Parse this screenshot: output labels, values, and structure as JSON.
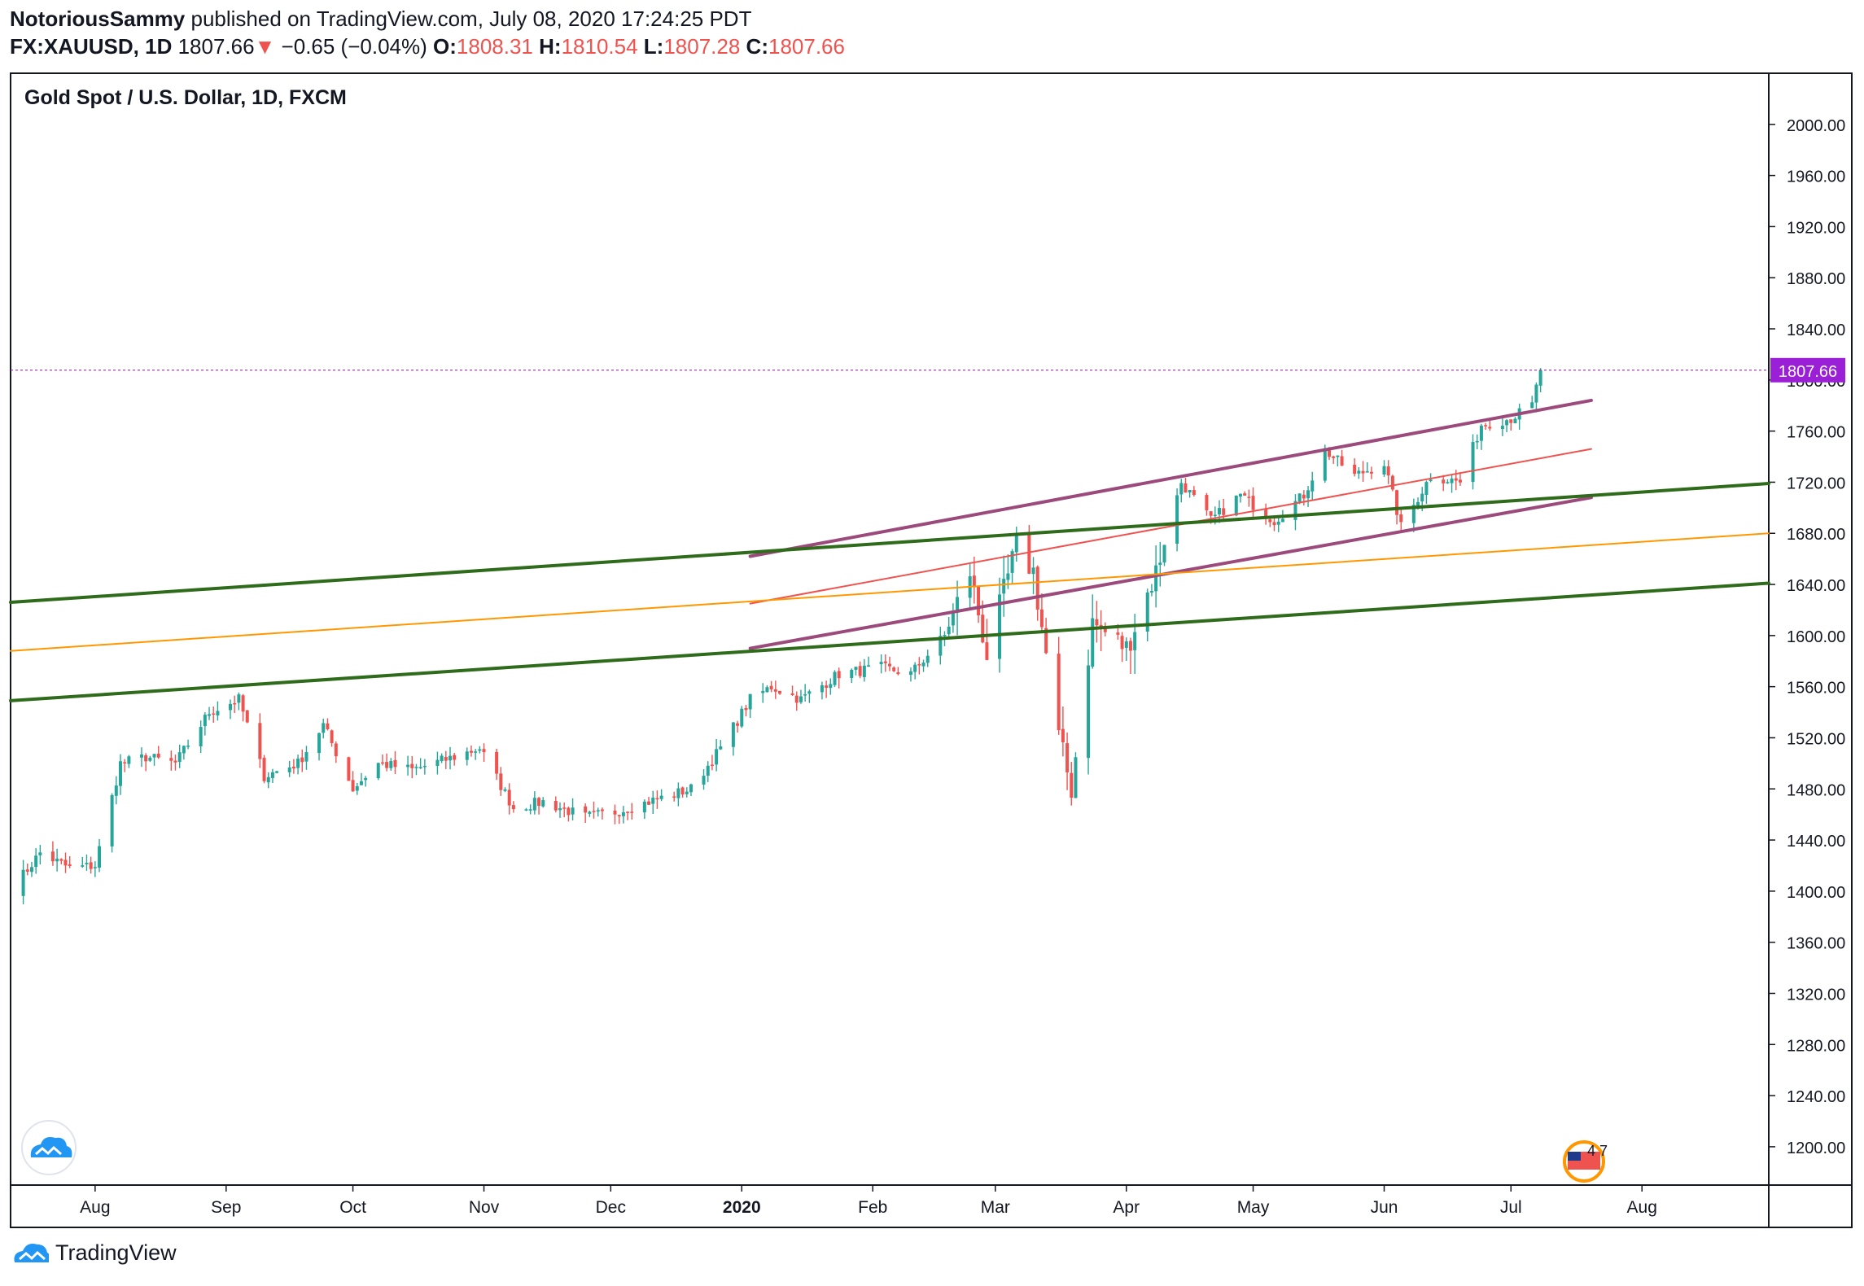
{
  "header": {
    "author": "NotoriousSammy",
    "published": "published on TradingView.com, July 08, 2020 17:24:25 PDT",
    "symbol": "FX:XAUUSD, 1D",
    "last": "1807.66",
    "change_arrow": "▼",
    "change": "−0.65 (−0.04%)",
    "o_label": "O:",
    "o": "1808.31",
    "h_label": "H:",
    "h": "1810.54",
    "l_label": "L:",
    "l": "1807.28",
    "c_label": "C:",
    "c": "1807.66"
  },
  "footer": {
    "brand": "TradingView",
    "logo_icon": "tradingview-logo-icon"
  },
  "colors": {
    "up": "#26a69a",
    "down": "#ef5350",
    "channel": "#9c4a7c",
    "green": "#2e6b1a",
    "orange": "#ff9800",
    "mid": "#ef5350",
    "price_line": "#9c27b0",
    "price_tag": "#9c1fd8"
  },
  "chart_data": {
    "type": "candlestick",
    "title": "Gold Spot / U.S. Dollar, 1D, FXCM",
    "ylim": [
      1170,
      2040
    ],
    "y_ticks": [
      1200,
      1240,
      1280,
      1320,
      1360,
      1400,
      1440,
      1480,
      1520,
      1560,
      1600,
      1640,
      1680,
      1720,
      1760,
      1800,
      1840,
      1880,
      1920,
      1960,
      2000
    ],
    "y_tick_labels": [
      "1200.00",
      "1240.00",
      "1280.00",
      "1320.00",
      "1360.00",
      "1400.00",
      "1440.00",
      "1480.00",
      "1520.00",
      "1560.00",
      "1600.00",
      "1640.00",
      "1680.00",
      "1720.00",
      "1760.00",
      "1800.00",
      "1840.00",
      "1880.00",
      "1920.00",
      "1960.00",
      "2000.00"
    ],
    "x_range": [
      "2019-07-12",
      "2020-08-31"
    ],
    "x_ticks": [
      {
        "date": "2019-08-01",
        "label": "Aug"
      },
      {
        "date": "2019-09-01",
        "label": "Sep"
      },
      {
        "date": "2019-10-01",
        "label": "Oct"
      },
      {
        "date": "2019-11-01",
        "label": "Nov"
      },
      {
        "date": "2019-12-01",
        "label": "Dec"
      },
      {
        "date": "2020-01-01",
        "label": "2020"
      },
      {
        "date": "2020-02-01",
        "label": "Feb"
      },
      {
        "date": "2020-03-01",
        "label": "Mar"
      },
      {
        "date": "2020-04-01",
        "label": "Apr"
      },
      {
        "date": "2020-05-01",
        "label": "May"
      },
      {
        "date": "2020-06-01",
        "label": "Jun"
      },
      {
        "date": "2020-07-01",
        "label": "Jul"
      },
      {
        "date": "2020-08-01",
        "label": "Aug"
      }
    ],
    "last_price": 1807.66,
    "last_price_label": "1807.66",
    "close_keypoints": [
      [
        "2019-07-12",
        1400
      ],
      [
        "2019-07-19",
        1430
      ],
      [
        "2019-07-26",
        1418
      ],
      [
        "2019-08-01",
        1420
      ],
      [
        "2019-08-07",
        1500
      ],
      [
        "2019-08-13",
        1505
      ],
      [
        "2019-08-20",
        1500
      ],
      [
        "2019-08-28",
        1540
      ],
      [
        "2019-09-04",
        1550
      ],
      [
        "2019-09-10",
        1490
      ],
      [
        "2019-09-18",
        1500
      ],
      [
        "2019-09-24",
        1530
      ],
      [
        "2019-10-01",
        1480
      ],
      [
        "2019-10-07",
        1500
      ],
      [
        "2019-10-15",
        1495
      ],
      [
        "2019-10-25",
        1505
      ],
      [
        "2019-10-31",
        1512
      ],
      [
        "2019-11-08",
        1465
      ],
      [
        "2019-11-15",
        1470
      ],
      [
        "2019-11-25",
        1458
      ],
      [
        "2019-12-02",
        1462
      ],
      [
        "2019-12-12",
        1472
      ],
      [
        "2019-12-20",
        1480
      ],
      [
        "2019-12-27",
        1512
      ],
      [
        "2020-01-03",
        1550
      ],
      [
        "2020-01-08",
        1560
      ],
      [
        "2020-01-15",
        1550
      ],
      [
        "2020-01-24",
        1570
      ],
      [
        "2020-02-03",
        1575
      ],
      [
        "2020-02-10",
        1570
      ],
      [
        "2020-02-18",
        1600
      ],
      [
        "2020-02-24",
        1650
      ],
      [
        "2020-02-28",
        1585
      ],
      [
        "2020-03-06",
        1670
      ],
      [
        "2020-03-10",
        1650
      ],
      [
        "2020-03-16",
        1520
      ],
      [
        "2020-03-19",
        1480
      ],
      [
        "2020-03-24",
        1610
      ],
      [
        "2020-04-01",
        1590
      ],
      [
        "2020-04-08",
        1650
      ],
      [
        "2020-04-14",
        1720
      ],
      [
        "2020-04-21",
        1690
      ],
      [
        "2020-04-28",
        1710
      ],
      [
        "2020-05-06",
        1690
      ],
      [
        "2020-05-13",
        1710
      ],
      [
        "2020-05-18",
        1745
      ],
      [
        "2020-05-25",
        1725
      ],
      [
        "2020-06-01",
        1735
      ],
      [
        "2020-06-05",
        1685
      ],
      [
        "2020-06-12",
        1725
      ],
      [
        "2020-06-19",
        1720
      ],
      [
        "2020-06-24",
        1765
      ],
      [
        "2020-07-01",
        1770
      ],
      [
        "2020-07-06",
        1780
      ],
      [
        "2020-07-08",
        1808
      ]
    ],
    "trendlines": [
      {
        "name": "channel-upper",
        "color": "channel",
        "points": [
          [
            "2020-01-03",
            1662
          ],
          [
            "2020-07-20",
            1784
          ]
        ]
      },
      {
        "name": "channel-lower",
        "color": "channel",
        "points": [
          [
            "2020-01-03",
            1590
          ],
          [
            "2020-07-20",
            1708
          ]
        ]
      },
      {
        "name": "channel-mid",
        "color": "mid",
        "points": [
          [
            "2020-01-03",
            1625
          ],
          [
            "2020-07-20",
            1746
          ]
        ]
      },
      {
        "name": "green-upper",
        "color": "green",
        "points": [
          [
            "2019-07-12",
            1626
          ],
          [
            "2020-08-31",
            1719
          ]
        ]
      },
      {
        "name": "green-lower",
        "color": "green",
        "points": [
          [
            "2019-07-12",
            1549
          ],
          [
            "2020-08-31",
            1641
          ]
        ]
      },
      {
        "name": "orange-mid",
        "color": "orange",
        "points": [
          [
            "2019-07-12",
            1588
          ],
          [
            "2020-08-31",
            1680
          ]
        ]
      }
    ]
  }
}
